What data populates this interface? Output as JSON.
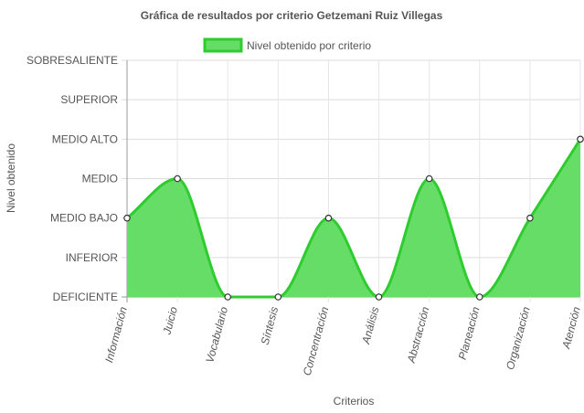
{
  "chart_data": {
    "type": "area",
    "title": "Gráfica de resultados por criterio Getzemani Ruiz Villegas",
    "xlabel": "Criterios",
    "ylabel": "Nivel obtenido",
    "legend_position": "top",
    "grid": true,
    "y_levels": [
      "DEFICIENTE",
      "INFERIOR",
      "MEDIO BAJO",
      "MEDIO",
      "MEDIO ALTO",
      "SUPERIOR",
      "SOBRESALIENTE"
    ],
    "ylim": [
      0,
      6
    ],
    "categories": [
      "Información",
      "Juicio",
      "Vocabulario",
      "Síntesis",
      "Concentración",
      "Análisis",
      "Abstracción",
      "Planeación",
      "Organización",
      "Atención"
    ],
    "series": [
      {
        "name": "Nivel obtenido por criterio",
        "values": [
          2,
          3,
          0,
          0,
          2,
          0,
          3,
          0,
          2,
          4
        ],
        "color": "#2ecc2e",
        "fill": "#66dd66"
      }
    ]
  }
}
